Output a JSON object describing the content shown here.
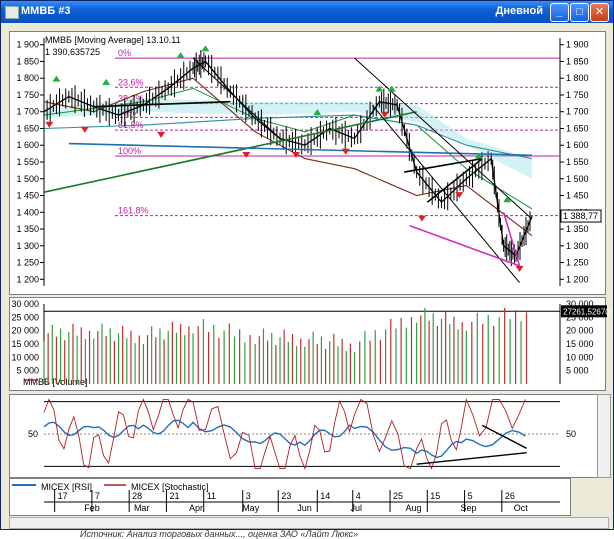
{
  "window": {
    "title": "ММВБ #3",
    "period": "Дневной"
  },
  "price_panel": {
    "label": "ММВБ [Moving Average] 13.10.11",
    "value": "1 390,635725",
    "last_price": "1 388,77",
    "fib_levels": [
      {
        "label": "0%",
        "value": 1860
      },
      {
        "label": "23,6%",
        "value": 1773
      },
      {
        "label": "38,2%",
        "value": 1724
      },
      {
        "label": "50%",
        "value": 1683
      },
      {
        "label": "61,8%",
        "value": 1645
      },
      {
        "label": "100%",
        "value": 1568
      },
      {
        "label": "161,8%",
        "value": 1390
      }
    ]
  },
  "volume_panel": {
    "legend": "ММВБ [Volume]",
    "last_value": "27261,52670"
  },
  "osc_panel": {
    "legend_rsi": "MICEX [RSI]",
    "legend_stoch": "MICEX [Stochastic]",
    "level_label": "50"
  },
  "date_axis": {
    "day_ticks": [
      "17",
      "7",
      "28",
      "21",
      "11",
      "3",
      "23",
      "14",
      "4",
      "25",
      "15",
      "5",
      "26"
    ],
    "month_ticks": [
      "Feb",
      "Mar",
      "Apr",
      "May",
      "Jun",
      "Jul",
      "Aug",
      "Sep",
      "Oct"
    ]
  },
  "caption": "Источник: Анализ торговых данных..., оценка ЗАО «Лайт Люкс»",
  "chart_data": [
    {
      "type": "line",
      "title": "ММВБ [Moving Average] 13.10.11",
      "ylim": [
        1180,
        1920
      ],
      "y_ticks": [
        1200,
        1250,
        1300,
        1350,
        1400,
        1450,
        1500,
        1550,
        1600,
        1650,
        1700,
        1750,
        1800,
        1850,
        1900
      ],
      "y_tick_labels": [
        "1 200",
        "1 250",
        "1 300",
        "1 350",
        "1 400",
        "1 450",
        "1 500",
        "1 550",
        "1 600",
        "1 650",
        "1 700",
        "1 750",
        "1 800",
        "1 850",
        "1 900"
      ],
      "x_range": [
        "2011-01-11",
        "2011-10-13"
      ],
      "series": [
        {
          "name": "ММВБ",
          "color": "#000000",
          "x": [
            "2011-01-11",
            "2011-01-25",
            "2011-02-08",
            "2011-02-22",
            "2011-03-08",
            "2011-03-22",
            "2011-04-05",
            "2011-04-12",
            "2011-04-26",
            "2011-05-10",
            "2011-05-24",
            "2011-06-07",
            "2011-06-21",
            "2011-07-05",
            "2011-07-19",
            "2011-07-29",
            "2011-08-09",
            "2011-08-23",
            "2011-09-06",
            "2011-09-20",
            "2011-09-27",
            "2011-10-04",
            "2011-10-13"
          ],
          "y": [
            1700,
            1745,
            1715,
            1690,
            1720,
            1770,
            1830,
            1850,
            1760,
            1680,
            1620,
            1600,
            1650,
            1620,
            1730,
            1720,
            1520,
            1430,
            1500,
            1560,
            1300,
            1270,
            1388
          ]
        },
        {
          "name": "",
          "color": "#7b2a16",
          "x": [
            "2011-01-11",
            "2011-02-08",
            "2011-03-08",
            "2011-04-05",
            "2011-05-10",
            "2011-06-07",
            "2011-07-05",
            "2011-08-09",
            "2011-09-06",
            "2011-10-13"
          ],
          "y": [
            1730,
            1700,
            1760,
            1800,
            1640,
            1560,
            1530,
            1450,
            1480,
            1330
          ]
        },
        {
          "name": "",
          "color": "#20a040",
          "x": [
            "2011-01-11",
            "2011-02-08",
            "2011-03-08",
            "2011-04-05",
            "2011-05-10",
            "2011-06-07",
            "2011-07-05",
            "2011-08-09",
            "2011-09-06",
            "2011-10-13"
          ],
          "y": [
            1690,
            1710,
            1730,
            1770,
            1680,
            1640,
            1690,
            1660,
            1530,
            1410
          ]
        },
        {
          "name": "",
          "color": "#2f8fa0",
          "x": [
            "2011-01-11",
            "2011-03-08",
            "2011-05-10",
            "2011-07-05",
            "2011-08-09",
            "2011-09-06",
            "2011-10-13"
          ],
          "y": [
            1650,
            1660,
            1680,
            1690,
            1660,
            1600,
            1560
          ]
        }
      ]
    },
    {
      "type": "bar",
      "title": "ММВБ [Volume]",
      "ylim": [
        0,
        30000
      ],
      "y_ticks": [
        5000,
        10000,
        15000,
        20000,
        25000,
        30000
      ],
      "y_tick_labels": [
        "5 000",
        "10 000",
        "15 000",
        "20 000",
        "25 000",
        "30 000"
      ],
      "x": [
        "2011-01-11",
        "2011-02-08",
        "2011-03-08",
        "2011-04-05",
        "2011-05-10",
        "2011-06-07",
        "2011-07-05",
        "2011-08-09",
        "2011-09-06",
        "2011-10-13"
      ],
      "values": [
        19000,
        20000,
        18000,
        22000,
        18000,
        17000,
        15000,
        26000,
        23000,
        27262
      ]
    },
    {
      "type": "line",
      "title": "",
      "ylim": [
        0,
        100
      ],
      "y_ticks": [
        50
      ],
      "y_tick_labels": [
        "50"
      ],
      "series": [
        {
          "name": "MICEX [RSI]",
          "color": "#1f6fc0",
          "x": [
            "2011-01-11",
            "2011-02-08",
            "2011-03-08",
            "2011-04-05",
            "2011-05-10",
            "2011-06-07",
            "2011-07-05",
            "2011-08-09",
            "2011-09-06",
            "2011-10-13"
          ],
          "y": [
            60,
            52,
            55,
            65,
            45,
            42,
            60,
            18,
            35,
            52
          ]
        },
        {
          "name": "MICEX [Stochastic]",
          "color": "#b02020",
          "x": [
            "2011-01-11",
            "2011-02-08",
            "2011-03-08",
            "2011-04-05",
            "2011-05-10",
            "2011-06-07",
            "2011-07-05",
            "2011-08-09",
            "2011-09-06",
            "2011-10-13"
          ],
          "y": [
            80,
            20,
            85,
            90,
            15,
            20,
            85,
            10,
            70,
            95
          ]
        }
      ]
    }
  ]
}
